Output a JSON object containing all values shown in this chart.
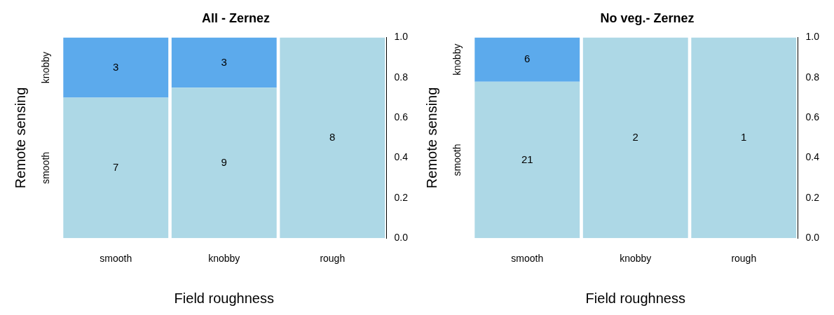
{
  "chart_data": [
    {
      "type": "bar",
      "title": "All - Zernez",
      "xlabel": "Field roughness",
      "ylabel": "Remote sensing",
      "stacked": true,
      "categories": [
        "smooth",
        "knobby",
        "rough"
      ],
      "series": [
        {
          "name": "smooth",
          "color": "#add8e6",
          "values": [
            0.7,
            0.75,
            1
          ]
        },
        {
          "name": "knobby",
          "color": "#5caaec",
          "values": [
            0.3,
            0.25,
            0
          ]
        }
      ],
      "annotations": [
        "7",
        "3",
        "9",
        "3",
        "8"
      ],
      "ylim": [
        0,
        1
      ],
      "yticks": [
        {
          "value": 0,
          "label": "0.0"
        },
        {
          "value": 0.2,
          "label": "0.2"
        },
        {
          "value": 0.4,
          "label": "0.4"
        },
        {
          "value": 0.6,
          "label": "0.6"
        },
        {
          "value": 0.8,
          "label": "0.8"
        },
        {
          "value": 1,
          "label": "1.0"
        }
      ],
      "grid": false,
      "legend": false
    },
    {
      "type": "bar",
      "title": "No veg.- Zernez",
      "xlabel": "Field roughness",
      "ylabel": "Remote sensing",
      "stacked": true,
      "categories": [
        "smooth",
        "knobby",
        "rough"
      ],
      "series": [
        {
          "name": "smooth",
          "color": "#add8e6",
          "values": [
            0.78,
            1,
            1
          ]
        },
        {
          "name": "knobby",
          "color": "#5caaec",
          "values": [
            0.22,
            0,
            0
          ]
        }
      ],
      "annotations": [
        "21",
        "6",
        "2",
        "1"
      ],
      "ylim": [
        0,
        1
      ],
      "yticks": [
        {
          "value": 0,
          "label": "0.0"
        },
        {
          "value": 0.2,
          "label": "0.2"
        },
        {
          "value": 0.4,
          "label": "0.4"
        },
        {
          "value": 0.6,
          "label": "0.6"
        },
        {
          "value": 0.8,
          "label": "0.8"
        },
        {
          "value": 1,
          "label": "1.0"
        }
      ],
      "grid": false,
      "legend": false
    }
  ]
}
